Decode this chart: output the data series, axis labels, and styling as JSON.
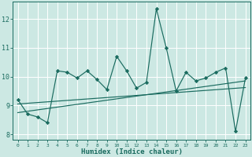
{
  "xlabel": "Humidex (Indice chaleur)",
  "xlim": [
    -0.5,
    23.5
  ],
  "ylim": [
    7.8,
    12.6
  ],
  "yticks": [
    8,
    9,
    10,
    11,
    12
  ],
  "xticks": [
    0,
    1,
    2,
    3,
    4,
    5,
    6,
    7,
    8,
    9,
    10,
    11,
    12,
    13,
    14,
    15,
    16,
    17,
    18,
    19,
    20,
    21,
    22,
    23
  ],
  "bg_color": "#cce8e3",
  "grid_color": "#ffffff",
  "line_color": "#1a6b5f",
  "series1_x": [
    0,
    1,
    2,
    3,
    4,
    5,
    6,
    7,
    8,
    9,
    10,
    11,
    12,
    13,
    14,
    15,
    16,
    17,
    18,
    19,
    20,
    21,
    22,
    23
  ],
  "series1_y": [
    9.2,
    8.7,
    8.6,
    8.4,
    10.2,
    10.15,
    9.95,
    10.2,
    9.9,
    9.55,
    10.7,
    10.2,
    9.6,
    9.8,
    12.35,
    11.0,
    9.5,
    10.15,
    9.85,
    9.95,
    10.15,
    10.3,
    8.1,
    9.95
  ],
  "series2_x": [
    0,
    23
  ],
  "series2_y": [
    8.75,
    9.85
  ],
  "series3_x": [
    0,
    23
  ],
  "series3_y": [
    9.05,
    9.62
  ],
  "marker": "D",
  "marker_size": 2.2,
  "linewidth": 0.85
}
